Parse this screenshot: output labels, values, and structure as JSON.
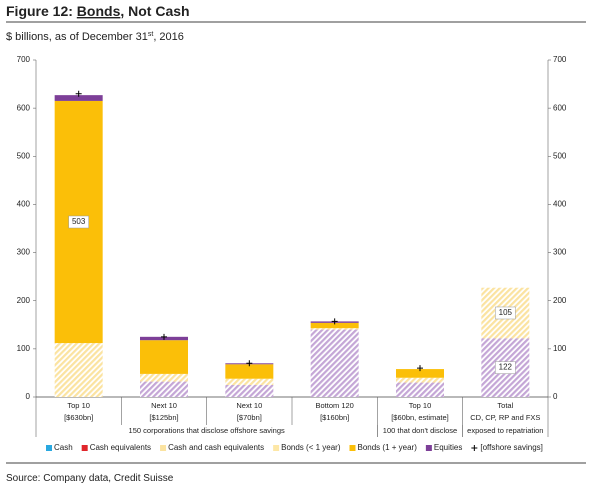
{
  "chart_data": {
    "type": "stacked_bar",
    "title": [
      "Figure 12: ",
      "Bonds",
      ", Not Cash"
    ],
    "subtitle": [
      "$ billions, as of December 31",
      "st",
      ", 2016"
    ],
    "source": "Source: Company data, Credit Suisse",
    "categories": [
      [
        "Top 10",
        "[$630bn]"
      ],
      [
        "Next 10",
        "[$125bn]"
      ],
      [
        "Next 10",
        "[$70bn]"
      ],
      [
        "Bottom 120",
        "[$160bn]"
      ],
      [
        "Top 10",
        "[$60bn, estimate]"
      ],
      [
        "Total",
        "CD, CP, RP and FXS"
      ]
    ],
    "groups": [
      {
        "label": "150 corporations that disclose offshore savings",
        "from": 0,
        "to": 3
      },
      {
        "label": "100 that don't disclose",
        "from": 4,
        "to": 4
      },
      {
        "label": "exposed to repatriation",
        "from": 5,
        "to": 5
      }
    ],
    "series": [
      {
        "name": "Cash",
        "color": "#29a8e0"
      },
      {
        "name": "Cash equivalents",
        "color": "#e0262b"
      },
      {
        "name": "Cash and cash equivalents",
        "color": "#fbe3a0"
      },
      {
        "name": "Bonds (< 1 year)",
        "color": "#fde7a6"
      },
      {
        "name": "Bonds (1 + year)",
        "color": "#fbbf08"
      },
      {
        "name": "Equities",
        "color": "#7d3f98",
        "hatch_color": "#c4a6d6"
      }
    ],
    "stacks": [
      [
        {
          "s": 2,
          "v": 112,
          "hatch": true
        },
        {
          "s": 4,
          "v": 503,
          "label": "503"
        },
        {
          "s": 5,
          "v": 12
        }
      ],
      [
        {
          "s": 5,
          "v": 32,
          "hatch": true
        },
        {
          "s": 2,
          "v": 16,
          "hatch": true
        },
        {
          "s": 4,
          "v": 70
        },
        {
          "s": 5,
          "v": 7
        }
      ],
      [
        {
          "s": 5,
          "v": 25,
          "hatch": true
        },
        {
          "s": 2,
          "v": 13,
          "hatch": true
        },
        {
          "s": 4,
          "v": 30
        },
        {
          "s": 5,
          "v": 2
        }
      ],
      [
        {
          "s": 5,
          "v": 140,
          "hatch": true
        },
        {
          "s": 2,
          "v": 3,
          "hatch": true
        },
        {
          "s": 4,
          "v": 11
        },
        {
          "s": 5,
          "v": 3
        }
      ],
      [
        {
          "s": 5,
          "v": 30,
          "hatch": true
        },
        {
          "s": 2,
          "v": 10,
          "hatch": true
        },
        {
          "s": 4,
          "v": 18
        }
      ],
      [
        {
          "s": 5,
          "v": 122,
          "hatch": true,
          "label": "122"
        },
        {
          "s": 2,
          "v": 105,
          "hatch": true,
          "label": "105"
        }
      ]
    ],
    "markers": {
      "name": "[offshore savings]",
      "symbol": "+",
      "values": [
        630,
        125,
        70,
        157,
        60,
        null
      ]
    },
    "ylim": [
      0,
      700
    ],
    "yticks": [
      0,
      100,
      200,
      300,
      400,
      500,
      600,
      700
    ],
    "y2lim": [
      0,
      700
    ],
    "y2ticks": [
      0,
      100,
      200,
      300,
      400,
      500,
      600,
      700
    ]
  }
}
